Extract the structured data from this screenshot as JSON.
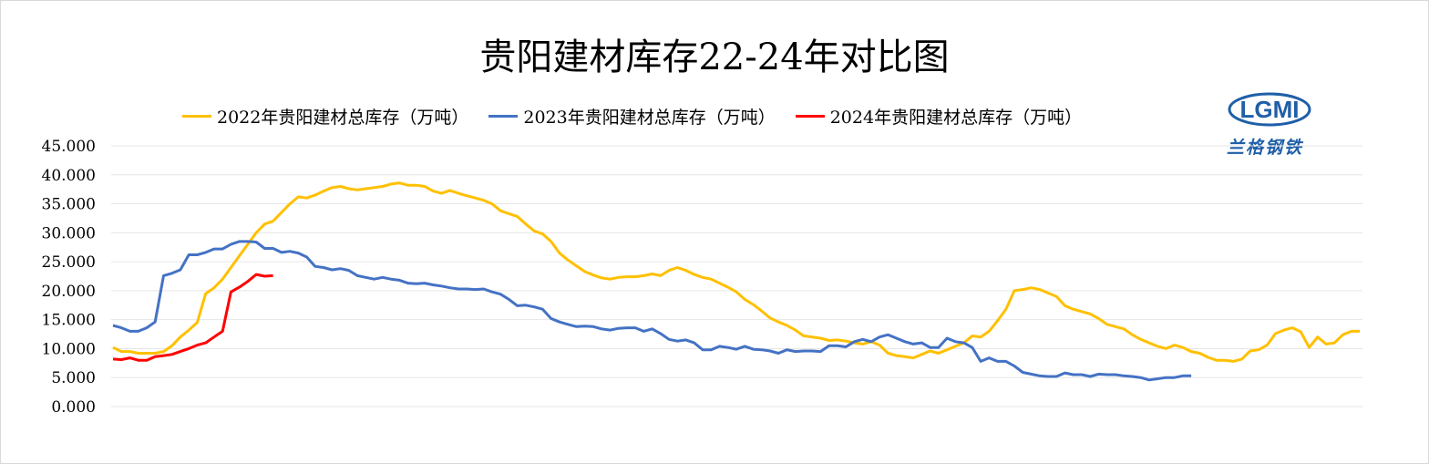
{
  "colors": {
    "series_2022": "#FFC000",
    "series_2023": "#4472C4",
    "series_2024": "#FF0000",
    "grid": "#e6e6e6",
    "logo_blue": "#1f5fa8"
  },
  "logo": {
    "text": "LGMI",
    "name": "兰格钢铁"
  },
  "chart_data": {
    "type": "line",
    "title": "贵阳建材库存22-24年对比图",
    "ylim": [
      0,
      45
    ],
    "yticks": [
      "0.000",
      "5.000",
      "10.000",
      "15.000",
      "20.000",
      "25.000",
      "30.000",
      "35.000",
      "40.000",
      "45.000"
    ],
    "grid": "horizontal",
    "legend_position": "top",
    "xlabel": "",
    "ylabel": "",
    "series": [
      {
        "name": "2022年贵阳建材总库存（万吨）",
        "values": [
          10.2,
          9.5,
          9.5,
          9.2,
          9.2,
          9.2,
          9.5,
          10.5,
          12.0,
          13.2,
          14.5,
          19.5,
          20.5,
          22.0,
          24.0,
          26.0,
          28.0,
          30.0,
          31.5,
          32.0,
          33.5,
          35.0,
          36.2,
          36.0,
          36.5,
          37.2,
          37.8,
          38.0,
          37.6,
          37.4,
          37.6,
          37.8,
          38.0,
          38.4,
          38.6,
          38.2,
          38.2,
          38.0,
          37.2,
          36.8,
          37.3,
          36.8,
          36.4,
          36.0,
          35.6,
          35.0,
          33.8,
          33.3,
          32.8,
          31.5,
          30.3,
          29.8,
          28.5,
          26.5,
          25.3,
          24.3,
          23.3,
          22.7,
          22.2,
          22.0,
          22.3,
          22.4,
          22.4,
          22.6,
          22.9,
          22.6,
          23.5,
          24.0,
          23.5,
          22.8,
          22.3,
          22.0,
          21.3,
          20.6,
          19.8,
          18.5,
          17.6,
          16.5,
          15.3,
          14.6,
          14.0,
          13.2,
          12.2,
          12.0,
          11.8,
          11.4,
          11.5,
          11.3,
          11.0,
          10.8,
          11.2,
          10.6,
          9.2,
          8.8,
          8.6,
          8.4,
          9.0,
          9.6,
          9.2,
          9.8,
          10.4,
          11.0,
          12.2,
          12.0,
          13.0,
          14.8,
          16.8,
          20.0,
          20.2,
          20.5,
          20.2,
          19.6,
          19.0,
          17.4,
          16.8,
          16.4,
          16.0,
          15.2,
          14.2,
          13.8,
          13.4,
          12.4,
          11.6,
          11.0,
          10.4,
          10.0,
          10.6,
          10.2,
          9.5,
          9.2,
          8.5,
          8.0,
          8.0,
          7.8,
          8.2,
          9.6,
          9.8,
          10.6,
          12.6,
          13.2,
          13.6,
          12.9,
          10.2,
          12.0,
          10.8,
          11.0,
          12.4,
          13.0,
          13.0
        ]
      },
      {
        "name": "2023年贵阳建材总库存（万吨）",
        "values": [
          14.0,
          13.6,
          13.0,
          13.0,
          13.6,
          14.6,
          22.6,
          23.0,
          23.6,
          26.2,
          26.2,
          26.6,
          27.2,
          27.2,
          28.0,
          28.5,
          28.5,
          28.4,
          27.3,
          27.3,
          26.6,
          26.8,
          26.5,
          25.8,
          24.2,
          24.0,
          23.6,
          23.8,
          23.5,
          22.6,
          22.3,
          22.0,
          22.3,
          22.0,
          21.8,
          21.3,
          21.2,
          21.3,
          21.0,
          20.8,
          20.5,
          20.3,
          20.3,
          20.2,
          20.3,
          19.8,
          19.4,
          18.5,
          17.4,
          17.5,
          17.2,
          16.8,
          15.2,
          14.6,
          14.2,
          13.8,
          13.9,
          13.8,
          13.4,
          13.2,
          13.5,
          13.6,
          13.6,
          13.0,
          13.4,
          12.6,
          11.6,
          11.3,
          11.5,
          11.0,
          9.8,
          9.8,
          10.4,
          10.2,
          9.9,
          10.4,
          9.9,
          9.8,
          9.6,
          9.2,
          9.8,
          9.5,
          9.6,
          9.6,
          9.5,
          10.5,
          10.5,
          10.3,
          11.2,
          11.6,
          11.2,
          12.0,
          12.4,
          11.8,
          11.2,
          10.8,
          11.0,
          10.2,
          10.2,
          11.8,
          11.2,
          11.0,
          10.2,
          7.8,
          8.4,
          7.8,
          7.8,
          7.0,
          5.9,
          5.6,
          5.3,
          5.2,
          5.2,
          5.8,
          5.5,
          5.5,
          5.2,
          5.6,
          5.5,
          5.5,
          5.3,
          5.2,
          5.0,
          4.6,
          4.8,
          5.0,
          5.0,
          5.3,
          5.3
        ]
      },
      {
        "name": "2024年贵阳建材总库存（万吨）",
        "values": [
          8.2,
          8.1,
          8.4,
          8.0,
          8.0,
          8.6,
          8.8,
          9.0,
          9.5,
          10.0,
          10.6,
          11.0,
          12.0,
          13.0,
          19.8,
          20.6,
          21.6,
          22.8,
          22.5,
          22.6
        ]
      }
    ]
  }
}
